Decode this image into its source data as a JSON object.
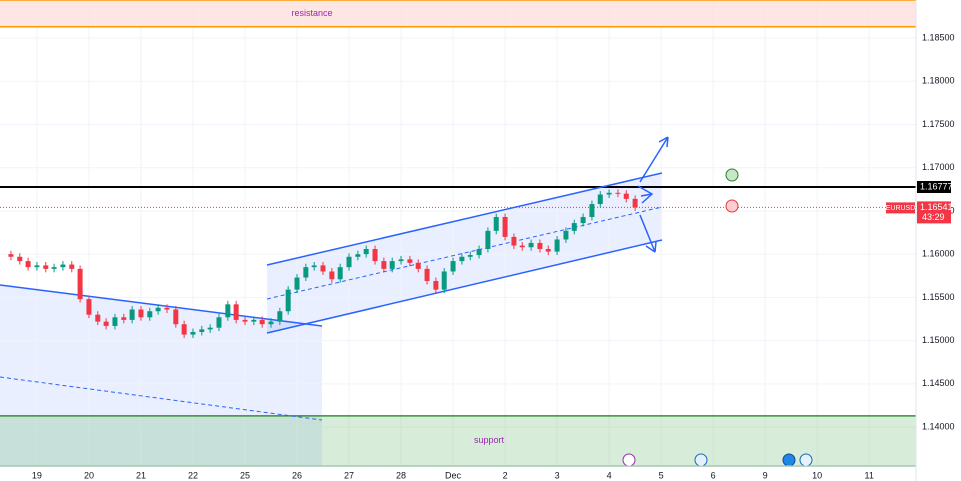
{
  "chart_data": {
    "type": "candlestick",
    "x": [
      -0.5,
      -0.33,
      -0.17,
      0,
      0.17,
      0.33,
      0.5,
      0.67,
      0.83,
      1,
      1.17,
      1.33,
      1.5,
      1.67,
      1.83,
      2,
      2.17,
      2.33,
      2.5,
      2.67,
      2.83,
      3,
      3.17,
      3.33,
      3.5,
      3.67,
      3.83,
      4,
      4.17,
      4.33,
      4.5,
      4.67,
      4.83,
      5,
      5.17,
      5.33,
      5.5,
      5.67,
      5.83,
      6,
      6.17,
      6.33,
      6.5,
      6.67,
      6.83,
      7,
      7.17,
      7.33,
      7.5,
      7.67,
      7.83,
      8,
      8.17,
      8.33,
      8.5,
      8.67,
      8.83,
      9,
      9.17,
      9.33,
      9.5,
      9.67,
      9.83,
      10,
      10.17,
      10.33,
      10.5,
      10.67,
      10.83,
      11,
      11.17,
      11.33,
      11.5
    ],
    "open": [
      1.16,
      1.1597,
      1.1592,
      1.1585,
      1.1587,
      1.1583,
      1.1585,
      1.1588,
      1.1583,
      1.1548,
      1.153,
      1.1522,
      1.1517,
      1.1527,
      1.1524,
      1.1536,
      1.1527,
      1.1534,
      1.1538,
      1.1536,
      1.1519,
      1.1507,
      1.151,
      1.1513,
      1.1515,
      1.1527,
      1.1542,
      1.1524,
      1.1522,
      1.1524,
      1.1519,
      1.1522,
      1.1534,
      1.1559,
      1.1573,
      1.1585,
      1.1587,
      1.158,
      1.1571,
      1.1585,
      1.1597,
      1.16,
      1.1606,
      1.1592,
      1.1583,
      1.1592,
      1.1594,
      1.159,
      1.1583,
      1.1569,
      1.1559,
      1.158,
      1.1592,
      1.1597,
      1.1599,
      1.1606,
      1.1627,
      1.1643,
      1.162,
      1.161,
      1.1608,
      1.1613,
      1.1606,
      1.1603,
      1.1617,
      1.1627,
      1.1636,
      1.1643,
      1.1658,
      1.1669,
      1.1671,
      1.167,
      1.1664
    ],
    "high": [
      1.1604,
      1.1601,
      1.1596,
      1.1591,
      1.1591,
      1.1589,
      1.1592,
      1.1592,
      1.1587,
      1.1552,
      1.1534,
      1.1526,
      1.1531,
      1.1531,
      1.154,
      1.154,
      1.1538,
      1.1542,
      1.1542,
      1.154,
      1.1523,
      1.1514,
      1.1517,
      1.1519,
      1.1531,
      1.1546,
      1.1546,
      1.1528,
      1.1528,
      1.1528,
      1.1526,
      1.1538,
      1.1563,
      1.1577,
      1.1589,
      1.1591,
      1.1591,
      1.1584,
      1.1589,
      1.1601,
      1.1604,
      1.161,
      1.161,
      1.1596,
      1.1596,
      1.1598,
      1.1598,
      1.1594,
      1.1587,
      1.1573,
      1.1584,
      1.1596,
      1.1601,
      1.1603,
      1.161,
      1.1631,
      1.1647,
      1.1647,
      1.1624,
      1.1614,
      1.1617,
      1.1617,
      1.161,
      1.1621,
      1.1631,
      1.164,
      1.1647,
      1.1662,
      1.1673,
      1.1675,
      1.1675,
      1.1674,
      1.1668
    ],
    "low": [
      1.1593,
      1.1588,
      1.1581,
      1.1581,
      1.1579,
      1.1579,
      1.1581,
      1.1579,
      1.1544,
      1.1526,
      1.1518,
      1.1513,
      1.1513,
      1.152,
      1.152,
      1.1523,
      1.1523,
      1.153,
      1.1532,
      1.1515,
      1.1503,
      1.1503,
      1.1506,
      1.1509,
      1.1511,
      1.1523,
      1.152,
      1.1518,
      1.1518,
      1.1515,
      1.1515,
      1.1518,
      1.153,
      1.1555,
      1.1569,
      1.1581,
      1.1576,
      1.1567,
      1.1567,
      1.1581,
      1.1593,
      1.1596,
      1.1588,
      1.1579,
      1.1579,
      1.1588,
      1.1586,
      1.1579,
      1.1565,
      1.1555,
      1.1555,
      1.1576,
      1.1588,
      1.1593,
      1.1595,
      1.1602,
      1.1623,
      1.1616,
      1.1606,
      1.1604,
      1.1604,
      1.1602,
      1.1599,
      1.1599,
      1.1613,
      1.1623,
      1.1632,
      1.1639,
      1.1654,
      1.1665,
      1.1666,
      1.166,
      1.165
    ],
    "close": [
      1.1597,
      1.1592,
      1.1585,
      1.1587,
      1.1583,
      1.1585,
      1.1588,
      1.1583,
      1.1548,
      1.153,
      1.1522,
      1.1517,
      1.1527,
      1.1524,
      1.1536,
      1.1527,
      1.1534,
      1.1538,
      1.1536,
      1.1519,
      1.1507,
      1.151,
      1.1513,
      1.1515,
      1.1527,
      1.1542,
      1.1524,
      1.1522,
      1.1524,
      1.1519,
      1.1522,
      1.1534,
      1.1559,
      1.1573,
      1.1585,
      1.1587,
      1.158,
      1.1571,
      1.1585,
      1.1597,
      1.16,
      1.1606,
      1.1592,
      1.1583,
      1.1592,
      1.1594,
      1.159,
      1.1583,
      1.1569,
      1.1559,
      1.158,
      1.1592,
      1.1597,
      1.1599,
      1.1606,
      1.1627,
      1.1643,
      1.162,
      1.161,
      1.1608,
      1.1613,
      1.1606,
      1.1603,
      1.1617,
      1.1627,
      1.1636,
      1.1643,
      1.1658,
      1.1669,
      1.1671,
      1.167,
      1.1664,
      1.16541
    ],
    "up_color": "#089981",
    "down_color": "#f23645",
    "xlim": [
      -0.71,
      16.9
    ],
    "ylim": [
      1.1355,
      1.1894
    ],
    "grid": true,
    "xticks": [
      {
        "value": 0,
        "label": "19"
      },
      {
        "value": 1,
        "label": "20"
      },
      {
        "value": 2,
        "label": "21"
      },
      {
        "value": 3,
        "label": "22"
      },
      {
        "value": 4,
        "label": "25"
      },
      {
        "value": 5,
        "label": "26"
      },
      {
        "value": 6,
        "label": "27"
      },
      {
        "value": 7,
        "label": "28"
      },
      {
        "value": 8,
        "label": "Dec"
      },
      {
        "value": 9,
        "label": "2"
      },
      {
        "value": 10,
        "label": "3"
      },
      {
        "value": 11,
        "label": "4"
      },
      {
        "value": 12,
        "label": "5"
      },
      {
        "value": 13,
        "label": "6"
      },
      {
        "value": 14,
        "label": "9"
      },
      {
        "value": 15,
        "label": "10"
      },
      {
        "value": 16,
        "label": "11"
      }
    ],
    "yticks": [
      {
        "value": 1.14,
        "label": "1.14000"
      },
      {
        "value": 1.145,
        "label": "1.14500"
      },
      {
        "value": 1.15,
        "label": "1.15000"
      },
      {
        "value": 1.155,
        "label": "1.15500"
      },
      {
        "value": 1.16,
        "label": "1.16000"
      },
      {
        "value": 1.165,
        "label": "1.16500"
      },
      {
        "value": 1.17,
        "label": "1.17000"
      },
      {
        "value": 1.175,
        "label": "1.17500"
      },
      {
        "value": 1.18,
        "label": "1.18000"
      },
      {
        "value": 1.185,
        "label": "1.18500"
      }
    ],
    "zones": [
      {
        "label": "resistance",
        "from": 1.1863,
        "to": 1.1894,
        "fill": "#fde0dc",
        "edge": "#ff9800",
        "text_color": "#9c27b0"
      },
      {
        "label": "support",
        "from": 1.1355,
        "to": 1.1413,
        "fill": "#4caf50",
        "edge": "#388e3c",
        "text_color": "#9c27b0"
      }
    ],
    "price_line": {
      "value": 1.16777,
      "color": "#000000"
    },
    "current_price": {
      "symbol": "EURUSD",
      "value": 1.16541,
      "countdown": "43:29",
      "color": "#f23645"
    }
  }
}
